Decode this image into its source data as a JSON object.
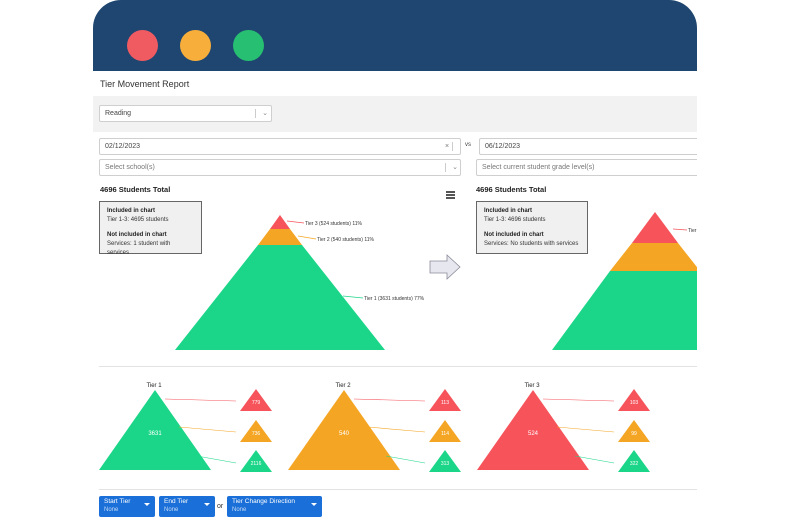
{
  "window": {
    "controls": [
      "close",
      "minimize",
      "maximize"
    ],
    "colors": {
      "titlebar": "#1f4670",
      "close": "#f05a61",
      "minimize": "#f7ae3b",
      "maximize": "#27bf71"
    }
  },
  "report": {
    "title": "Tier Movement Report",
    "subject": "Reading",
    "vs_label": "vs",
    "left": {
      "date": "02/12/2023",
      "school_placeholder": "Select school(s)",
      "total": "4696 Students Total",
      "legend": {
        "included_heading": "Included in chart",
        "included_text": "Tier 1-3: 4695 students",
        "excluded_heading": "Not included in chart",
        "excluded_text": "Services: 1 student with services"
      },
      "labels": {
        "tier3": "Tier 3 (524 students) 11%",
        "tier2": "Tier 2 (540 students) 11%",
        "tier1": "Tier 1 (3631 students) 77%"
      }
    },
    "right": {
      "date": "06/12/2023",
      "grade_placeholder": "Select current student grade level(s)",
      "total": "4696 Students Total",
      "legend": {
        "included_heading": "Included in chart",
        "included_text": "Tier 1-3: 4696 students",
        "excluded_heading": "Not included in chart",
        "excluded_text": "Services: No students with services"
      },
      "labels": {
        "tier3": "Tier"
      }
    },
    "movement": [
      {
        "title": "Tier 1",
        "count": "3631",
        "to_tier3": "779",
        "to_tier2": "736",
        "to_tier1": "2116"
      },
      {
        "title": "Tier 2",
        "count": "540",
        "to_tier3": "113",
        "to_tier2": "114",
        "to_tier1": "313"
      },
      {
        "title": "Tier 3",
        "count": "524",
        "to_tier3": "103",
        "to_tier2": "99",
        "to_tier1": "322"
      }
    ],
    "filters": {
      "start_tier": {
        "label": "Start Tier",
        "value": "None"
      },
      "end_tier": {
        "label": "End Tier",
        "value": "None"
      },
      "or_label": "or",
      "direction": {
        "label": "Tier Change Direction",
        "value": "None"
      }
    },
    "colors": {
      "tier1": "#1bd688",
      "tier2": "#f5a524",
      "tier3": "#f6535b",
      "filter": "#1a6fd8"
    }
  }
}
